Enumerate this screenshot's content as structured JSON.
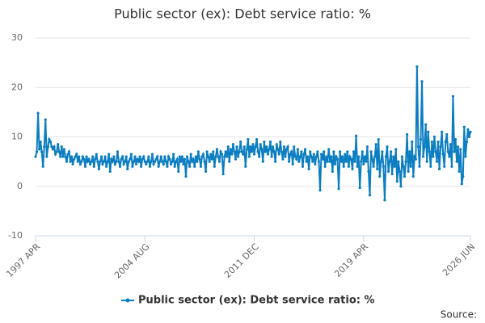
{
  "chart_data": {
    "type": "line",
    "title": "Public sector (ex): Debt service ratio: %",
    "source": "Source:",
    "x": [
      "1997 APR",
      "1997 MAY",
      "1997 JUN",
      "1997 JUL",
      "1997 AUG",
      "1997 SEP",
      "1997 OCT",
      "1997 NOV",
      "1997 DEC",
      "1998 JAN",
      "1998 FEB",
      "1998 MAR",
      "1998 APR",
      "1998 MAY",
      "1998 JUN",
      "1998 JUL",
      "1998 AUG",
      "1998 SEP",
      "1998 OCT",
      "1998 NOV",
      "1998 DEC",
      "1999 JAN",
      "1999 FEB",
      "1999 MAR",
      "1999 APR",
      "1999 MAY",
      "1999 JUN",
      "1999 JUL",
      "1999 AUG",
      "1999 SEP",
      "1999 OCT",
      "1999 NOV",
      "1999 DEC",
      "2000 JAN",
      "2000 FEB",
      "2000 MAR",
      "2000 APR",
      "2000 MAY",
      "2000 JUN",
      "2000 JUL",
      "2000 AUG",
      "2000 SEP",
      "2000 OCT",
      "2000 NOV",
      "2000 DEC",
      "2001 JAN",
      "2001 FEB",
      "2001 MAR",
      "2001 APR",
      "2001 MAY",
      "2001 JUN",
      "2001 JUL",
      "2001 AUG",
      "2001 SEP",
      "2001 OCT",
      "2001 NOV",
      "2001 DEC",
      "2002 JAN",
      "2002 FEB",
      "2002 MAR",
      "2002 APR",
      "2002 MAY",
      "2002 JUN",
      "2002 JUL",
      "2002 AUG",
      "2002 SEP",
      "2002 OCT",
      "2002 NOV",
      "2002 DEC",
      "2003 JAN",
      "2003 FEB",
      "2003 MAR",
      "2003 APR",
      "2003 MAY",
      "2003 JUN",
      "2003 JUL",
      "2003 AUG",
      "2003 SEP",
      "2003 OCT",
      "2003 NOV",
      "2003 DEC",
      "2004 JAN",
      "2004 FEB",
      "2004 MAR",
      "2004 APR",
      "2004 MAY",
      "2004 JUN",
      "2004 JUL",
      "2004 AUG",
      "2004 SEP",
      "2004 OCT",
      "2004 NOV",
      "2004 DEC",
      "2005 JAN",
      "2005 FEB",
      "2005 MAR",
      "2005 APR",
      "2005 MAY",
      "2005 JUN",
      "2005 JUL",
      "2005 AUG",
      "2005 SEP",
      "2005 OCT",
      "2005 NOV",
      "2005 DEC",
      "2006 JAN",
      "2006 FEB",
      "2006 MAR",
      "2006 APR",
      "2006 MAY",
      "2006 JUN",
      "2006 JUL",
      "2006 AUG",
      "2006 SEP",
      "2006 OCT",
      "2006 NOV",
      "2006 DEC",
      "2007 JAN",
      "2007 FEB",
      "2007 MAR",
      "2007 APR",
      "2007 MAY",
      "2007 JUN",
      "2007 JUL",
      "2007 AUG",
      "2007 SEP",
      "2007 OCT",
      "2007 NOV",
      "2007 DEC",
      "2008 JAN",
      "2008 FEB",
      "2008 MAR",
      "2008 APR",
      "2008 MAY",
      "2008 JUN",
      "2008 JUL",
      "2008 AUG",
      "2008 SEP",
      "2008 OCT",
      "2008 NOV",
      "2008 DEC",
      "2009 JAN",
      "2009 FEB",
      "2009 MAR",
      "2009 APR",
      "2009 MAY",
      "2009 JUN",
      "2009 JUL",
      "2009 AUG",
      "2009 SEP",
      "2009 OCT",
      "2009 NOV",
      "2009 DEC",
      "2010 JAN",
      "2010 FEB",
      "2010 MAR",
      "2010 APR",
      "2010 MAY",
      "2010 JUN",
      "2010 JUL",
      "2010 AUG",
      "2010 SEP",
      "2010 OCT",
      "2010 NOV",
      "2010 DEC",
      "2011 JAN",
      "2011 FEB",
      "2011 MAR",
      "2011 APR",
      "2011 MAY",
      "2011 JUN",
      "2011 JUL",
      "2011 AUG",
      "2011 SEP",
      "2011 OCT",
      "2011 NOV",
      "2011 DEC",
      "2012 JAN",
      "2012 FEB",
      "2012 MAR",
      "2012 APR",
      "2012 MAY",
      "2012 JUN",
      "2012 JUL",
      "2012 AUG",
      "2012 SEP",
      "2012 OCT",
      "2012 NOV",
      "2012 DEC",
      "2013 JAN",
      "2013 FEB",
      "2013 MAR",
      "2013 APR",
      "2013 MAY",
      "2013 JUN",
      "2013 JUL",
      "2013 AUG",
      "2013 SEP",
      "2013 OCT",
      "2013 NOV",
      "2013 DEC",
      "2014 JAN",
      "2014 FEB",
      "2014 MAR",
      "2014 APR",
      "2014 MAY",
      "2014 JUN",
      "2014 JUL",
      "2014 AUG",
      "2014 SEP",
      "2014 OCT",
      "2014 NOV",
      "2014 DEC",
      "2015 JAN",
      "2015 FEB",
      "2015 MAR",
      "2015 APR",
      "2015 MAY",
      "2015 JUN",
      "2015 JUL",
      "2015 AUG",
      "2015 SEP",
      "2015 OCT",
      "2015 NOV",
      "2015 DEC",
      "2016 JAN",
      "2016 FEB",
      "2016 MAR",
      "2016 APR",
      "2016 MAY",
      "2016 JUN",
      "2016 JUL",
      "2016 AUG",
      "2016 SEP",
      "2016 OCT",
      "2016 NOV",
      "2016 DEC",
      "2017 JAN",
      "2017 FEB",
      "2017 MAR",
      "2017 APR",
      "2017 MAY",
      "2017 JUN",
      "2017 JUL",
      "2017 AUG",
      "2017 SEP",
      "2017 OCT",
      "2017 NOV",
      "2017 DEC",
      "2018 JAN",
      "2018 FEB",
      "2018 MAR",
      "2018 APR",
      "2018 MAY",
      "2018 JUN",
      "2018 JUL",
      "2018 AUG",
      "2018 SEP",
      "2018 OCT",
      "2018 NOV",
      "2018 DEC",
      "2019 JAN",
      "2019 FEB",
      "2019 MAR",
      "2019 APR",
      "2019 MAY",
      "2019 JUN",
      "2019 JUL",
      "2019 AUG",
      "2019 SEP",
      "2019 OCT",
      "2019 NOV",
      "2019 DEC",
      "2020 JAN",
      "2020 FEB",
      "2020 MAR",
      "2020 APR",
      "2020 MAY",
      "2020 JUN",
      "2020 JUL",
      "2020 AUG",
      "2020 SEP",
      "2020 OCT",
      "2020 NOV",
      "2020 DEC",
      "2021 JAN",
      "2021 FEB",
      "2021 MAR",
      "2021 APR",
      "2021 MAY",
      "2021 JUN",
      "2021 JUL",
      "2021 AUG",
      "2021 SEP",
      "2021 OCT",
      "2021 NOV",
      "2021 DEC",
      "2022 JAN",
      "2022 FEB",
      "2022 MAR",
      "2022 APR",
      "2022 MAY",
      "2022 JUN",
      "2022 JUL",
      "2022 AUG",
      "2022 SEP",
      "2022 OCT",
      "2022 NOV",
      "2022 DEC",
      "2023 JAN",
      "2023 FEB",
      "2023 MAR",
      "2023 APR",
      "2023 MAY",
      "2023 JUN",
      "2023 JUL",
      "2023 AUG",
      "2023 SEP",
      "2023 OCT",
      "2023 NOV",
      "2023 DEC",
      "2024 JAN",
      "2024 FEB",
      "2024 MAR",
      "2024 APR",
      "2024 MAY",
      "2024 JUN",
      "2024 JUL",
      "2024 AUG",
      "2024 SEP",
      "2024 OCT",
      "2024 NOV",
      "2024 DEC",
      "2025 JAN",
      "2025 FEB",
      "2025 MAR",
      "2025 APR",
      "2025 MAY",
      "2025 JUN",
      "2025 JUL",
      "2025 AUG",
      "2025 SEP",
      "2025 OCT",
      "2025 NOV",
      "2025 DEC",
      "2026 JAN",
      "2026 FEB",
      "2026 MAR",
      "2026 APR",
      "2026 MAY",
      "2026 JUN"
    ],
    "xticks": [
      "1997 APR",
      "2004 AUG",
      "2011 DEC",
      "2019 APR",
      "2026 JUN"
    ],
    "series": [
      {
        "name": "Public sector (ex): Debt service ratio: %",
        "color": "#0b7dc1",
        "values": [
          6,
          7,
          14.8,
          7.5,
          9,
          7,
          4,
          8,
          13.5,
          6,
          8,
          9.5,
          9,
          8,
          7.5,
          8,
          6.5,
          7,
          8.5,
          7,
          6,
          8,
          6,
          7.5,
          6,
          5,
          6.5,
          7,
          5,
          6,
          4.5,
          5.5,
          6,
          6.5,
          5,
          6,
          4.5,
          5,
          6,
          5.5,
          4,
          6,
          5,
          5.5,
          4.5,
          5,
          6,
          4,
          5.5,
          6.5,
          5,
          3.5,
          5,
          6,
          4.5,
          5,
          6,
          4,
          5,
          6.5,
          3,
          5.5,
          5,
          6,
          4.5,
          5,
          7,
          5,
          4,
          5.5,
          6,
          4.5,
          5,
          6,
          3.5,
          5,
          5.5,
          6.5,
          4,
          5,
          6,
          4.5,
          5.5,
          5,
          6,
          4,
          5.5,
          6,
          5,
          4.5,
          5,
          6,
          4,
          5,
          6.5,
          4.5,
          5,
          5.5,
          6,
          4,
          5,
          6,
          5,
          4.5,
          6,
          5,
          4,
          6,
          5.5,
          4.5,
          5,
          6.5,
          4,
          5,
          5.5,
          3,
          6,
          5,
          6,
          4.5,
          5.5,
          2,
          6,
          5,
          4,
          6.5,
          5,
          5.5,
          4,
          6,
          5,
          7,
          5.5,
          4,
          6,
          6.5,
          5,
          3,
          7,
          6,
          5,
          6.5,
          5.5,
          7,
          4,
          6,
          7.5,
          6,
          5,
          7,
          6.5,
          2.5,
          6,
          7,
          6,
          8,
          5,
          7.5,
          6.5,
          8.5,
          7,
          5.5,
          8,
          6,
          7,
          9,
          7,
          6.5,
          8,
          4,
          7.5,
          9.5,
          6,
          8,
          7,
          8.5,
          6.5,
          8,
          9.5,
          7,
          6,
          8.5,
          7.5,
          5,
          9,
          7,
          8,
          6.5,
          7.5,
          9,
          6,
          8,
          7,
          5,
          8.5,
          7.5,
          6.5,
          9,
          7,
          5.5,
          8,
          6,
          7.5,
          8,
          5,
          6.5,
          7,
          4.5,
          8,
          6,
          5.5,
          7.5,
          5,
          6,
          7,
          4,
          6.5,
          7.5,
          5,
          6,
          3.5,
          7,
          6,
          5,
          6.5,
          4.5,
          6,
          7,
          5,
          -0.8,
          6.5,
          5.5,
          7,
          4,
          6,
          5,
          7.5,
          5,
          6,
          3,
          7,
          4.5,
          6,
          5.5,
          -0.5,
          7,
          5,
          6,
          4,
          6.5,
          5,
          7,
          4,
          6,
          5.5,
          3.5,
          7,
          5,
          10.2,
          4,
          6,
          -0.3,
          5,
          7,
          4.5,
          6,
          5,
          8,
          3,
          -1.8,
          7,
          5.5,
          4,
          6,
          8.5,
          3.5,
          9.5,
          2,
          5,
          7,
          4,
          -2.8,
          6,
          8,
          3,
          5,
          7,
          2.5,
          6,
          4,
          7.5,
          1,
          5,
          3,
          0,
          6,
          4,
          2,
          5,
          10.5,
          3,
          7,
          4,
          9,
          2,
          6,
          5.5,
          24.2,
          8,
          4,
          9.5,
          21.2,
          6,
          8,
          12.5,
          5,
          11,
          7,
          4,
          9,
          6,
          10,
          7,
          5,
          9,
          3.5,
          8,
          11,
          6.5,
          4,
          9,
          10.5,
          7,
          6,
          8.5,
          4,
          18.2,
          7,
          9.5,
          5,
          8,
          3,
          7.5,
          0.5,
          2,
          12,
          6,
          9,
          11.5,
          10,
          11
        ]
      }
    ],
    "ylim": [
      -10,
      30
    ],
    "yticks": [
      -10,
      0,
      10,
      20,
      30
    ],
    "grid": true
  }
}
